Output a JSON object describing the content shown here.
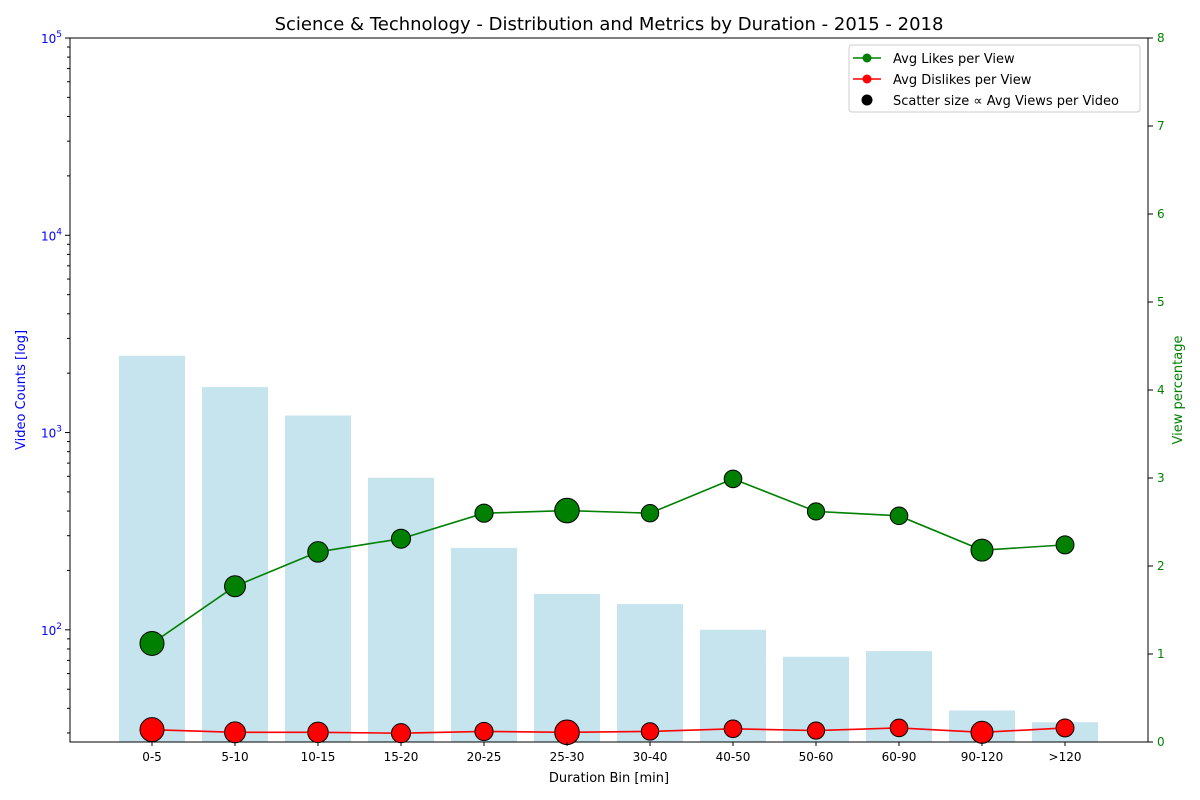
{
  "chart_data": {
    "type": "bar",
    "title": "Science & Technology - Distribution and Metrics by Duration - 2015 - 2018",
    "xlabel": "Duration Bin [min]",
    "ylabel": "Video Counts [log]",
    "y2label": "View percentage",
    "categories": [
      "0-5",
      "5-10",
      "10-15",
      "15-20",
      "20-25",
      "25-30",
      "30-40",
      "40-50",
      "50-60",
      "60-90",
      "90-120",
      ">120"
    ],
    "y_scale": "log",
    "ylim": [
      27,
      100000
    ],
    "y_ticks": [
      {
        "value": 100,
        "base": "10",
        "exp": "2"
      },
      {
        "value": 1000,
        "base": "10",
        "exp": "3"
      },
      {
        "value": 10000,
        "base": "10",
        "exp": "4"
      },
      {
        "value": 100000,
        "base": "10",
        "exp": "5"
      }
    ],
    "y2lim": [
      0,
      8
    ],
    "y2_ticks": [
      "0",
      "1",
      "2",
      "3",
      "4",
      "5",
      "6",
      "7",
      "8"
    ],
    "bar_color": "#add8e6",
    "bars": {
      "name": "Video Counts",
      "values": [
        2450,
        1700,
        1220,
        590,
        260,
        152,
        135,
        100,
        73,
        78,
        39,
        34
      ]
    },
    "series": [
      {
        "name": "Avg Likes per View",
        "axis": "right",
        "color": "#008000",
        "values": [
          1.12,
          1.77,
          2.16,
          2.31,
          2.6,
          2.63,
          2.6,
          2.99,
          2.62,
          2.57,
          2.18,
          2.24
        ]
      },
      {
        "name": "Avg Dislikes per View",
        "axis": "right",
        "color": "#ff0000",
        "values": [
          0.14,
          0.11,
          0.11,
          0.1,
          0.12,
          0.11,
          0.12,
          0.15,
          0.13,
          0.16,
          0.11,
          0.16
        ]
      }
    ],
    "marker_size_relative": [
      1.0,
      0.72,
      0.68,
      0.55,
      0.47,
      1.05,
      0.4,
      0.42,
      0.38,
      0.42,
      0.82,
      0.45
    ],
    "legend": {
      "position": "top-right",
      "entries": [
        {
          "label": "Avg Likes per View",
          "color": "#008000",
          "kind": "line"
        },
        {
          "label": "Avg Dislikes per View",
          "color": "#ff0000",
          "kind": "line"
        },
        {
          "label": "Scatter size ∝ Avg Views per Video",
          "color": "#000000",
          "kind": "dot"
        }
      ]
    },
    "grid": false,
    "left_axis_color": "#0000ff",
    "right_axis_color": "#008000"
  }
}
